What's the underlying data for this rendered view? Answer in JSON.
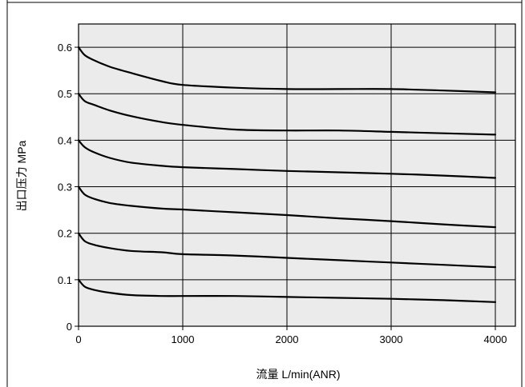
{
  "chart_data": {
    "type": "line",
    "title": "",
    "xlabel": "流量 L/min(ANR)",
    "ylabel": "出口压力 MPa",
    "xlim": [
      0,
      4100
    ],
    "ylim": [
      0,
      0.65
    ],
    "x_ticks": [
      0,
      1000,
      2000,
      3000,
      4000
    ],
    "y_ticks": [
      0,
      0.1,
      0.2,
      0.3,
      0.4,
      0.5,
      0.6
    ],
    "x_tick_labels": [
      "0",
      "1000",
      "2000",
      "3000",
      "4000"
    ],
    "y_tick_labels": [
      "0",
      "0.1",
      "0.2",
      "0.3",
      "0.4",
      "0.5",
      "0.6"
    ],
    "grid": true,
    "plot_background": "#ebebeb",
    "line_color": "#000000",
    "series": [
      {
        "x": [
          0,
          60,
          150,
          300,
          500,
          800,
          1000,
          1500,
          2000,
          2500,
          3000,
          3500,
          4000
        ],
        "y": [
          0.6,
          0.583,
          0.572,
          0.558,
          0.545,
          0.527,
          0.519,
          0.513,
          0.51,
          0.51,
          0.51,
          0.507,
          0.503
        ]
      },
      {
        "x": [
          0,
          60,
          150,
          300,
          500,
          800,
          1000,
          1500,
          2000,
          2500,
          3000,
          3500,
          4000
        ],
        "y": [
          0.5,
          0.484,
          0.476,
          0.464,
          0.452,
          0.439,
          0.433,
          0.423,
          0.421,
          0.421,
          0.418,
          0.415,
          0.412
        ]
      },
      {
        "x": [
          0,
          60,
          150,
          300,
          500,
          800,
          1000,
          1500,
          2000,
          2500,
          3000,
          3500,
          4000
        ],
        "y": [
          0.4,
          0.385,
          0.374,
          0.362,
          0.352,
          0.345,
          0.342,
          0.338,
          0.334,
          0.331,
          0.328,
          0.324,
          0.319
        ]
      },
      {
        "x": [
          0,
          60,
          150,
          300,
          500,
          800,
          1000,
          1500,
          2000,
          2500,
          3000,
          3500,
          4000
        ],
        "y": [
          0.3,
          0.283,
          0.274,
          0.265,
          0.259,
          0.253,
          0.251,
          0.245,
          0.239,
          0.232,
          0.226,
          0.219,
          0.213
        ]
      },
      {
        "x": [
          0,
          60,
          150,
          300,
          500,
          800,
          1000,
          1500,
          2000,
          2500,
          3000,
          3500,
          4000
        ],
        "y": [
          0.2,
          0.183,
          0.175,
          0.168,
          0.162,
          0.159,
          0.155,
          0.152,
          0.147,
          0.142,
          0.137,
          0.132,
          0.127
        ]
      },
      {
        "x": [
          0,
          60,
          150,
          300,
          500,
          800,
          1000,
          1500,
          2000,
          2500,
          3000,
          3500,
          4000
        ],
        "y": [
          0.1,
          0.085,
          0.078,
          0.072,
          0.067,
          0.065,
          0.065,
          0.065,
          0.063,
          0.061,
          0.059,
          0.056,
          0.052
        ]
      }
    ]
  }
}
